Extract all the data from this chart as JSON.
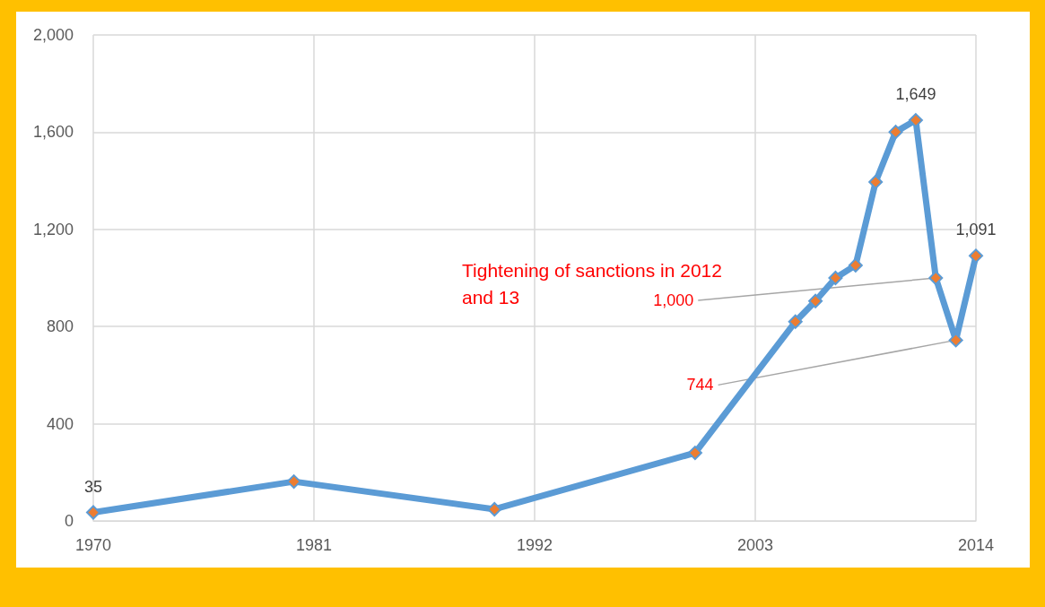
{
  "chart_data": {
    "type": "line",
    "x": [
      1970,
      1980,
      1990,
      2000,
      2005,
      2006,
      2007,
      2008,
      2009,
      2010,
      2011,
      2012,
      2013,
      2014
    ],
    "series": [
      {
        "color": "#5b9bd5",
        "colors": [
          "#ed7d31",
          "#ed7d31",
          "#ed7d31",
          "#ed7d31",
          "#ed7d31",
          "#ed7d31",
          "#ed7d31",
          "#ed7d31",
          "#ed7d31",
          "#ed7d31",
          "#ed7d31",
          "#ed7d31",
          "#ed7d31",
          "#ed7d31"
        ],
        "values": [
          35,
          162,
          48,
          280,
          820,
          905,
          1000,
          1052,
          1395,
          1601,
          1649,
          1000,
          744,
          1091
        ],
        "value_labels": [
          "35",
          null,
          null,
          null,
          null,
          null,
          null,
          null,
          null,
          null,
          "1,649",
          null,
          null,
          "1,091"
        ]
      }
    ],
    "xlim": [
      1970,
      2014
    ],
    "xticks": [
      1970,
      1981,
      1992,
      2003,
      2014
    ],
    "ylim": [
      0,
      2000
    ],
    "yticks": [
      {
        "value": 0,
        "label": "0"
      },
      {
        "value": 400,
        "label": "400"
      },
      {
        "value": 800,
        "label": "800"
      },
      {
        "value": 1200,
        "label": "1,200"
      },
      {
        "value": 1600,
        "label": "1,600"
      },
      {
        "value": 2000,
        "label": "2,000"
      }
    ],
    "grid": true,
    "marker": "diamond",
    "annotations": [
      "Tightening of sanctions in 2012 and 13",
      {
        "text": "1,000",
        "x": 2012,
        "y": 1000
      },
      {
        "text": "744",
        "x": 2013,
        "y": 744
      }
    ]
  }
}
